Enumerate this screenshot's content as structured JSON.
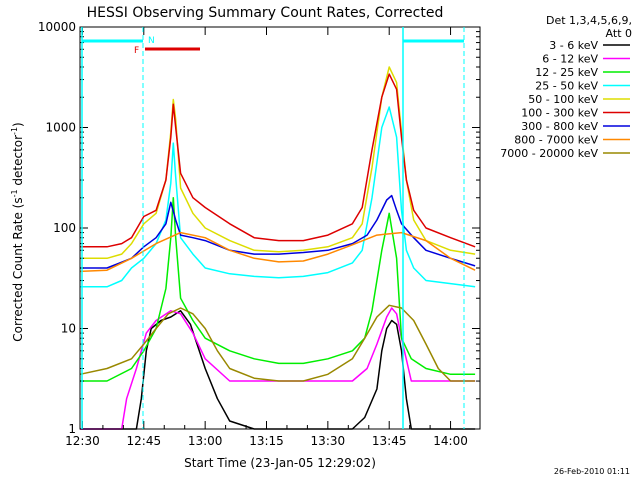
{
  "chart_data": {
    "type": "line",
    "title": "HESSI Observing Summary Count Rates, Corrected",
    "xlabel": "Start Time (23-Jan-05 12:29:02)",
    "ylabel_main": "Corrected Count Rate (s",
    "ylabel_sup1": "-1",
    "ylabel_mid": " detector",
    "ylabel_sup2": "-1",
    "ylabel_end": ")",
    "ylog": true,
    "ylim": [
      1,
      10000
    ],
    "xlim": [
      12.49,
      14.12
    ],
    "x_ticks": [
      {
        "v": 12.5,
        "label": "12:30"
      },
      {
        "v": 12.75,
        "label": "12:45"
      },
      {
        "v": 13.0,
        "label": "13:00"
      },
      {
        "v": 13.25,
        "label": "13:15"
      },
      {
        "v": 13.5,
        "label": "13:30"
      },
      {
        "v": 13.75,
        "label": "13:45"
      },
      {
        "v": 14.0,
        "label": "14:00"
      }
    ],
    "y_ticks": [
      {
        "v": 1,
        "label": "1"
      },
      {
        "v": 10,
        "label": "10"
      },
      {
        "v": 100,
        "label": "100"
      },
      {
        "v": 1000,
        "label": "1000"
      },
      {
        "v": 10000,
        "label": "10000"
      }
    ],
    "legend_header": [
      "Det 1,3,4,5,6,9,",
      "Att 0"
    ],
    "legend_position": "right-outside",
    "series": [
      {
        "name": "3 - 6 keV",
        "color": "#000000",
        "x": [
          12.49,
          12.72,
          12.74,
          12.76,
          12.78,
          12.82,
          12.86,
          12.9,
          12.94,
          13.0,
          13.05,
          13.1,
          13.2,
          13.3,
          13.4,
          13.5,
          13.6,
          13.65,
          13.7,
          13.72,
          13.74,
          13.76,
          13.78,
          13.8,
          13.82,
          13.84,
          13.86,
          14.0,
          14.1
        ],
        "y": [
          1,
          1,
          2,
          6,
          10,
          12,
          13,
          15,
          11,
          4,
          2,
          1.2,
          1,
          1,
          1,
          1,
          1,
          1.3,
          2.5,
          6,
          10,
          12,
          11,
          6,
          2,
          1,
          1,
          1,
          1
        ]
      },
      {
        "name": "6 - 12 keV",
        "color": "#ff00ff",
        "x": [
          12.49,
          12.66,
          12.68,
          12.72,
          12.76,
          12.8,
          12.86,
          12.9,
          12.95,
          13.0,
          13.1,
          13.2,
          13.3,
          13.4,
          13.5,
          13.6,
          13.66,
          13.7,
          13.74,
          13.76,
          13.78,
          13.8,
          13.84,
          13.9,
          14.0,
          14.1
        ],
        "y": [
          1,
          1,
          2,
          4,
          9,
          12,
          15,
          14,
          9,
          5,
          3,
          3,
          3,
          3,
          3,
          3,
          4,
          7,
          13,
          16,
          14,
          8,
          3,
          3,
          3,
          3
        ]
      },
      {
        "name": "12 - 25 keV",
        "color": "#00ee00",
        "x": [
          12.49,
          12.6,
          12.7,
          12.75,
          12.8,
          12.84,
          12.86,
          12.87,
          12.88,
          12.9,
          12.95,
          13.0,
          13.1,
          13.2,
          13.3,
          13.4,
          13.5,
          13.6,
          13.65,
          13.68,
          13.72,
          13.75,
          13.78,
          13.8,
          13.84,
          13.9,
          14.0,
          14.1
        ],
        "y": [
          3,
          3,
          4,
          6,
          10,
          25,
          80,
          200,
          80,
          20,
          12,
          8,
          6,
          5,
          4.5,
          4.5,
          5,
          6,
          8,
          15,
          60,
          140,
          50,
          8,
          5,
          4,
          3.5,
          3.5
        ]
      },
      {
        "name": "25 - 50 keV",
        "color": "#00ffff",
        "x": [
          12.49,
          12.6,
          12.66,
          12.7,
          12.75,
          12.8,
          12.84,
          12.86,
          12.87,
          12.88,
          12.9,
          12.95,
          13.0,
          13.1,
          13.2,
          13.3,
          13.4,
          13.5,
          13.6,
          13.64,
          13.68,
          13.72,
          13.75,
          13.78,
          13.8,
          13.82,
          13.85,
          13.9,
          14.0,
          14.1
        ],
        "y": [
          26,
          26,
          30,
          40,
          50,
          70,
          120,
          280,
          700,
          320,
          80,
          55,
          40,
          35,
          33,
          32,
          33,
          36,
          45,
          60,
          200,
          1000,
          1600,
          800,
          150,
          60,
          40,
          30,
          28,
          26
        ]
      },
      {
        "name": "50 - 100 keV",
        "color": "#dddd00",
        "x": [
          12.49,
          12.6,
          12.66,
          12.7,
          12.75,
          12.8,
          12.84,
          12.86,
          12.87,
          12.88,
          12.9,
          12.95,
          13.0,
          13.1,
          13.2,
          13.3,
          13.4,
          13.5,
          13.6,
          13.64,
          13.68,
          13.72,
          13.75,
          13.78,
          13.8,
          13.82,
          13.85,
          13.9,
          14.0,
          14.1
        ],
        "y": [
          50,
          50,
          55,
          70,
          110,
          140,
          300,
          900,
          1900,
          1200,
          250,
          140,
          100,
          75,
          60,
          58,
          60,
          65,
          80,
          110,
          400,
          2000,
          4000,
          2800,
          900,
          300,
          120,
          75,
          60,
          55
        ]
      },
      {
        "name": "100 - 300 keV",
        "color": "#dd0000",
        "x": [
          12.49,
          12.6,
          12.66,
          12.7,
          12.75,
          12.8,
          12.84,
          12.86,
          12.87,
          12.88,
          12.9,
          12.95,
          13.0,
          13.1,
          13.2,
          13.3,
          13.4,
          13.5,
          13.6,
          13.64,
          13.68,
          13.72,
          13.75,
          13.78,
          13.8,
          13.82,
          13.85,
          13.9,
          14.0,
          14.1
        ],
        "y": [
          65,
          65,
          70,
          80,
          130,
          150,
          300,
          800,
          1700,
          1000,
          350,
          200,
          160,
          110,
          80,
          75,
          75,
          85,
          110,
          160,
          600,
          2000,
          3400,
          2400,
          800,
          300,
          150,
          100,
          80,
          65
        ]
      },
      {
        "name": "300 - 800 keV",
        "color": "#0000dd",
        "x": [
          12.49,
          12.6,
          12.7,
          12.75,
          12.8,
          12.84,
          12.86,
          12.88,
          12.9,
          12.95,
          13.0,
          13.1,
          13.2,
          13.3,
          13.4,
          13.5,
          13.6,
          13.66,
          13.7,
          13.74,
          13.76,
          13.78,
          13.8,
          13.85,
          13.9,
          14.0,
          14.1
        ],
        "y": [
          40,
          40,
          50,
          65,
          80,
          110,
          180,
          120,
          85,
          80,
          75,
          60,
          55,
          55,
          57,
          60,
          70,
          85,
          120,
          190,
          210,
          150,
          110,
          80,
          60,
          50,
          42
        ]
      },
      {
        "name": "800 - 7000 keV",
        "color": "#ff8800",
        "x": [
          12.49,
          12.6,
          12.7,
          12.8,
          12.9,
          13.0,
          13.1,
          13.2,
          13.3,
          13.4,
          13.5,
          13.6,
          13.7,
          13.8,
          13.9,
          14.0,
          14.1
        ],
        "y": [
          37,
          38,
          50,
          70,
          90,
          80,
          60,
          50,
          46,
          47,
          55,
          68,
          85,
          90,
          75,
          50,
          38
        ]
      },
      {
        "name": "7000 - 20000 keV",
        "color": "#998800",
        "x": [
          12.49,
          12.6,
          12.7,
          12.75,
          12.8,
          12.85,
          12.9,
          12.95,
          13.0,
          13.05,
          13.1,
          13.2,
          13.3,
          13.4,
          13.5,
          13.6,
          13.65,
          13.7,
          13.75,
          13.8,
          13.85,
          13.9,
          13.95,
          14.0,
          14.1
        ],
        "y": [
          3.5,
          4,
          5,
          7,
          10,
          14,
          16,
          14,
          10,
          6,
          4,
          3.2,
          3,
          3,
          3.5,
          5,
          8,
          13,
          17,
          16,
          12,
          7,
          4,
          3,
          3
        ]
      }
    ]
  },
  "annotations": {
    "n_label": "N",
    "f_label": "F",
    "timestamp": "26-Feb-2010 01:11"
  }
}
